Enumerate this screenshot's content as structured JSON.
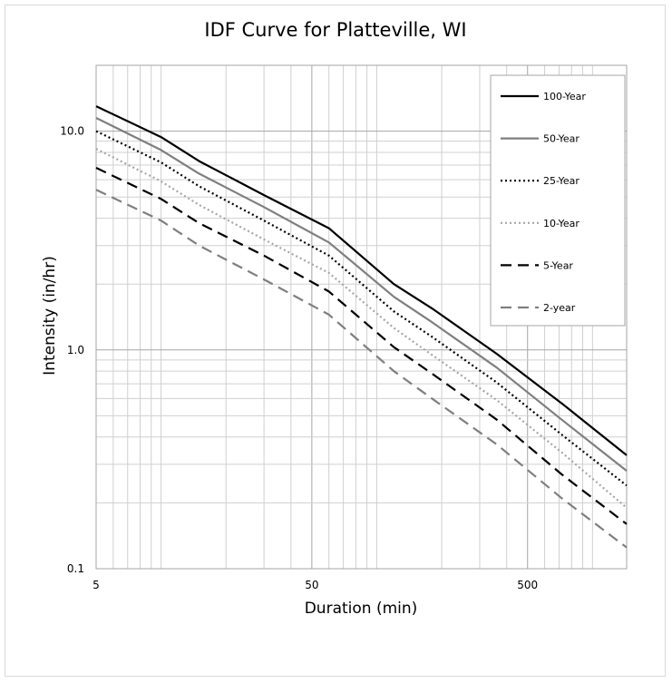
{
  "chart_data": {
    "type": "line",
    "title": "IDF Curve for Platteville, WI",
    "xlabel": "Duration (min)",
    "ylabel": "Intensity (in/hr)",
    "x_scale": "log",
    "y_scale": "log",
    "xlim": [
      5,
      1440
    ],
    "ylim": [
      0.1,
      20
    ],
    "x_tick_labels": [
      "5",
      "50",
      "500"
    ],
    "x_tick_values": [
      5,
      50,
      500
    ],
    "y_tick_labels": [
      "0.1",
      "1.0",
      "10.0"
    ],
    "y_tick_values": [
      0.1,
      1,
      10
    ],
    "grid": true,
    "legend_position": "top-right",
    "x": [
      5,
      10,
      15,
      30,
      60,
      120,
      180,
      360,
      720,
      1440
    ],
    "series": [
      {
        "name": "100-Year",
        "color": "#000000",
        "dash": "solid",
        "width": 2.2,
        "values": [
          13.0,
          9.4,
          7.3,
          5.1,
          3.6,
          2.0,
          1.55,
          0.96,
          0.57,
          0.33
        ]
      },
      {
        "name": "50-Year",
        "color": "#7f7f7f",
        "dash": "solid",
        "width": 2.2,
        "values": [
          11.5,
          8.2,
          6.4,
          4.5,
          3.1,
          1.75,
          1.34,
          0.83,
          0.48,
          0.28
        ]
      },
      {
        "name": "25-Year",
        "color": "#000000",
        "dash": "dotted",
        "width": 2.2,
        "values": [
          10.0,
          7.2,
          5.6,
          3.9,
          2.7,
          1.5,
          1.15,
          0.71,
          0.41,
          0.24
        ]
      },
      {
        "name": "10-Year",
        "color": "#a6a6a6",
        "dash": "dotted",
        "width": 2.2,
        "values": [
          8.3,
          5.9,
          4.6,
          3.2,
          2.25,
          1.26,
          0.95,
          0.59,
          0.34,
          0.19
        ]
      },
      {
        "name": "5-Year",
        "color": "#000000",
        "dash": "dashed",
        "width": 2.2,
        "values": [
          6.8,
          4.9,
          3.8,
          2.7,
          1.85,
          1.03,
          0.78,
          0.48,
          0.27,
          0.16
        ]
      },
      {
        "name": "2-year",
        "color": "#7f7f7f",
        "dash": "dashed",
        "width": 2.2,
        "values": [
          5.4,
          3.9,
          3.0,
          2.1,
          1.45,
          0.8,
          0.6,
          0.37,
          0.21,
          0.125
        ]
      }
    ]
  }
}
